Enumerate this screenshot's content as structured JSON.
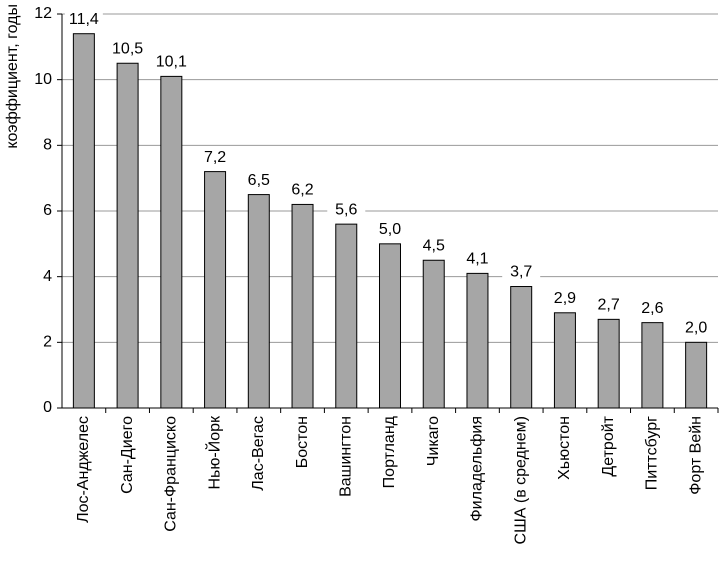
{
  "chart_data": {
    "type": "bar",
    "y_label": "коэффициент, годы",
    "categories": [
      "Лос-Анджелес",
      "Сан-Диего",
      "Сан-Франциско",
      "Нью-Йорк",
      "Лас-Вегас",
      "Бостон",
      "Вашингтон",
      "Портланд",
      "Чикаго",
      "Филадельфия",
      "США (в среднем)",
      "Хьюстон",
      "Детройт",
      "Питтсбург",
      "Форт Вейн"
    ],
    "values": [
      11.4,
      10.5,
      10.1,
      7.2,
      6.5,
      6.2,
      5.6,
      5.0,
      4.5,
      4.1,
      3.7,
      2.9,
      2.7,
      2.6,
      2.0
    ],
    "value_labels": [
      "11,4",
      "10,5",
      "10,1",
      "7,2",
      "6,5",
      "6,2",
      "5,6",
      "5,0",
      "4,5",
      "4,1",
      "3,7",
      "2,9",
      "2,7",
      "2,6",
      "2,0"
    ],
    "color": "#a6a6a6",
    "ylim": [
      0,
      12
    ],
    "yticks": [
      0,
      2,
      4,
      6,
      8,
      10,
      12
    ],
    "grid": true
  }
}
